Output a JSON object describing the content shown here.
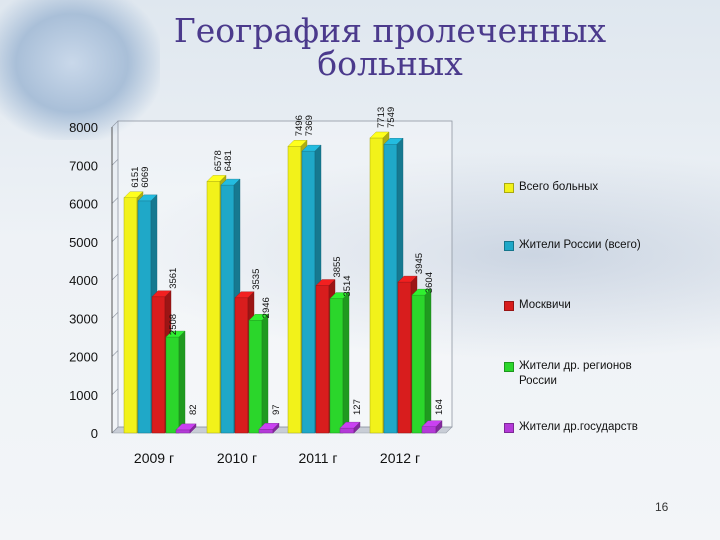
{
  "title_line1": "География пролеченных",
  "title_line2": "больных",
  "page_number": "16",
  "chart_data": {
    "type": "bar",
    "categories": [
      "2009 г",
      "2010 г",
      "2011 г",
      "2012 г"
    ],
    "ylim": [
      0,
      8000
    ],
    "yticks": [
      "0",
      "1000",
      "2000",
      "3000",
      "4000",
      "5000",
      "6000",
      "7000",
      "8000"
    ],
    "legend_position": "right",
    "series": [
      {
        "name": "Всего больных",
        "color": "#f2f21a",
        "values": [
          6151,
          6578,
          7496,
          7713
        ]
      },
      {
        "name": "Жители России (всего)",
        "color": "#1fa8c8",
        "values": [
          6069,
          6481,
          7369,
          7549
        ]
      },
      {
        "name": "Москвичи",
        "color": "#d81d1d",
        "values": [
          3561,
          3535,
          3855,
          3945
        ]
      },
      {
        "name": "Жители др. регионов России",
        "color": "#2bd62b",
        "values": [
          2508,
          2946,
          3514,
          3604
        ]
      },
      {
        "name": "Жители др.государств",
        "color": "#b43ad8",
        "values": [
          82,
          97,
          127,
          164
        ]
      }
    ],
    "data_labels": [
      [
        "6151",
        "6069"
      ],
      [
        "6578",
        "6481"
      ],
      [
        "7496",
        "7369"
      ],
      [
        "7713",
        "7549"
      ]
    ],
    "data_labels_moscow": [
      "3561",
      "3535",
      "3855",
      "3945"
    ],
    "data_labels_regions": [
      "2508",
      "2946",
      "3514",
      "3604"
    ],
    "data_labels_foreign": [
      "82",
      "97",
      "127",
      "164"
    ]
  }
}
